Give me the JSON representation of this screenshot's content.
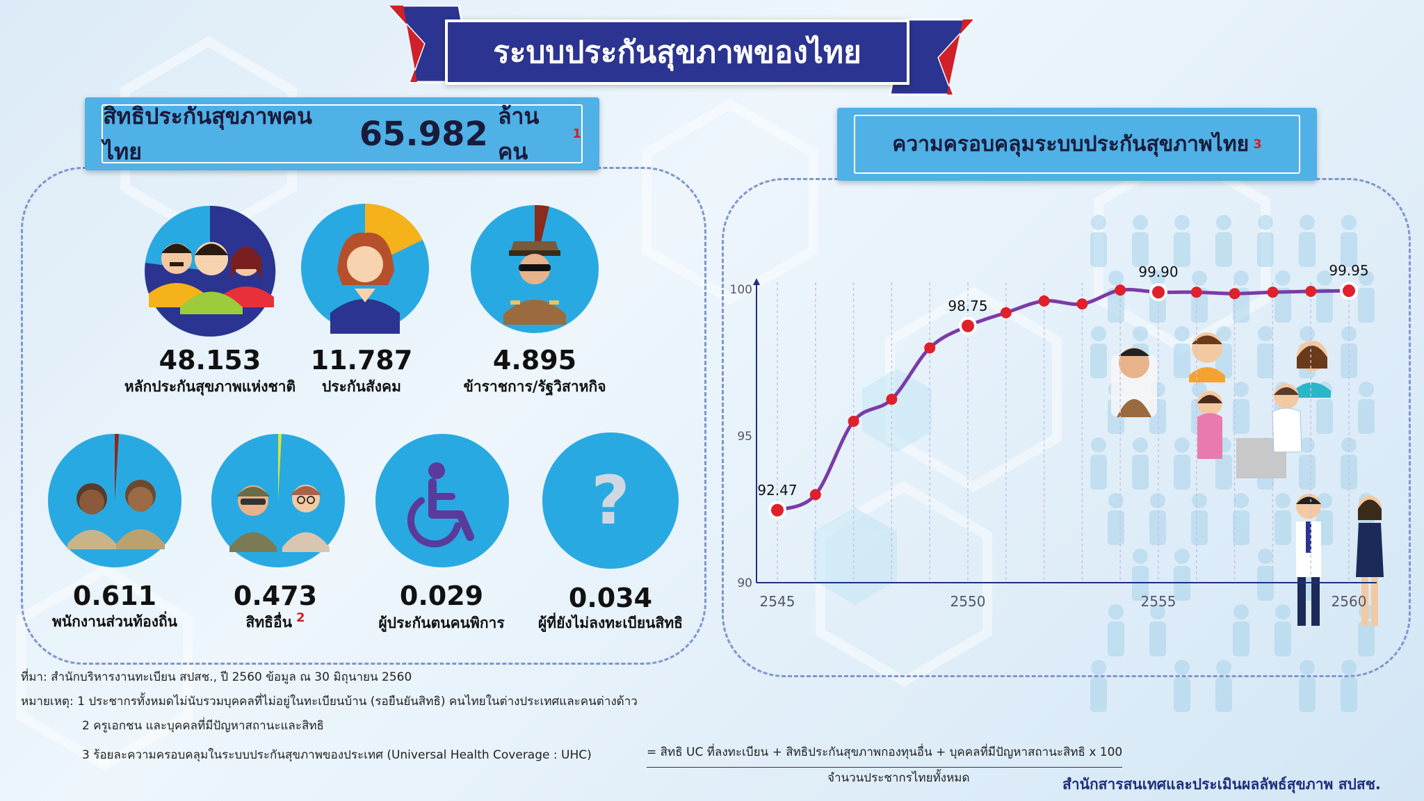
{
  "header": {
    "title": "ระบบประกันสุขภาพของไทย"
  },
  "left_panel": {
    "title_prefix": "สิทธิประกันสุขภาพคนไทย",
    "title_value": "65.982",
    "title_unit": "ล้านคน",
    "title_note": "1",
    "categories": [
      {
        "value": "48.153",
        "label": "หลักประกันสุขภาพแห่งชาติ",
        "note": "",
        "icon": "family-icon",
        "share": 0.73
      },
      {
        "value": "11.787",
        "label": "ประกันสังคม",
        "note": "",
        "icon": "woman-icon",
        "share": 0.18
      },
      {
        "value": "4.895",
        "label": "ข้าราชการ/รัฐวิสาหกิจ",
        "note": "",
        "icon": "officer-icon",
        "share": 0.074
      },
      {
        "value": "0.611",
        "label": "พนักงานส่วนท้องถิ่น",
        "note": "",
        "icon": "local-staff-icon",
        "share": 0.009
      },
      {
        "value": "0.473",
        "label": "สิทธิอื่น",
        "note": "2",
        "icon": "soldier-teacher-icon",
        "share": 0.007
      },
      {
        "value": "0.029",
        "label": "ผู้ประกันตนคนพิการ",
        "note": "",
        "icon": "wheelchair-icon",
        "share": 0.0
      },
      {
        "value": "0.034",
        "label": "ผู้ที่ยังไม่ลงทะเบียนสิทธิ",
        "note": "",
        "icon": "question-icon",
        "share": 0.0
      }
    ],
    "question_mark": "?"
  },
  "right_panel": {
    "title": "ความครอบคลุมระบบประกันสุขภาพไทย",
    "title_note": "3"
  },
  "chart_data": {
    "type": "line",
    "x": [
      2545,
      2546,
      2547,
      2548,
      2549,
      2550,
      2551,
      2552,
      2553,
      2554,
      2555,
      2556,
      2557,
      2558,
      2559,
      2560
    ],
    "y": [
      92.47,
      93.0,
      95.5,
      96.25,
      98.0,
      98.75,
      99.2,
      99.6,
      99.5,
      99.97,
      99.9,
      99.9,
      99.85,
      99.9,
      99.93,
      99.95
    ],
    "labeled_points": [
      {
        "x": 2545,
        "y": "92.47"
      },
      {
        "x": 2550,
        "y": "98.75"
      },
      {
        "x": 2555,
        "y": "99.90"
      },
      {
        "x": 2560,
        "y": "99.95"
      }
    ],
    "xticks": [
      "2545",
      "2550",
      "2555",
      "2560"
    ],
    "yticks": [
      "90",
      "95",
      "100"
    ],
    "xlim": [
      2545,
      2560
    ],
    "ylim": [
      90,
      100
    ],
    "line_color": "#7b3aa8",
    "marker_color": "#e0202a",
    "grid": "vertical dashed"
  },
  "footnotes": {
    "source": "ที่มา: สำนักบริหารงานทะเบียน สปสช., ปี 2560 ข้อมูล ณ 30 มิถุนายน 2560",
    "note1": "หมายเหตุ: 1 ประชากรทั้งหมดไม่นับรวมบุคคลที่ไม่อยู่ในทะเบียนบ้าน (รอยืนยันสิทธิ) คนไทยในต่างประเทศและคนต่างด้าว",
    "note2": "2 ครูเอกชน และบุคคลที่มีปัญหาสถานะและสิทธิ",
    "note3": "3 ร้อยละความครอบคลุมในระบบประกันสุขภาพของประเทศ (Universal Health Coverage : UHC)",
    "formula_numerator": "= สิทธิ UC ที่ลงทะเบียน + สิทธิประกันสุขภาพกองทุนอื่น + บุคคลที่มีปัญหาสถานะสิทธิ x 100",
    "formula_denominator": "จำนวนประชากรไทยทั้งหมด",
    "credit": "สำนักสารสนเทศและประเมินผลลัพธ์สุขภาพ สปสช."
  },
  "colors": {
    "navy": "#2b3490",
    "accent_red": "#d0202a",
    "circle_blue": "#29a9e1",
    "title_blue": "#4fb1e6",
    "yellow": "#f5b21b"
  }
}
